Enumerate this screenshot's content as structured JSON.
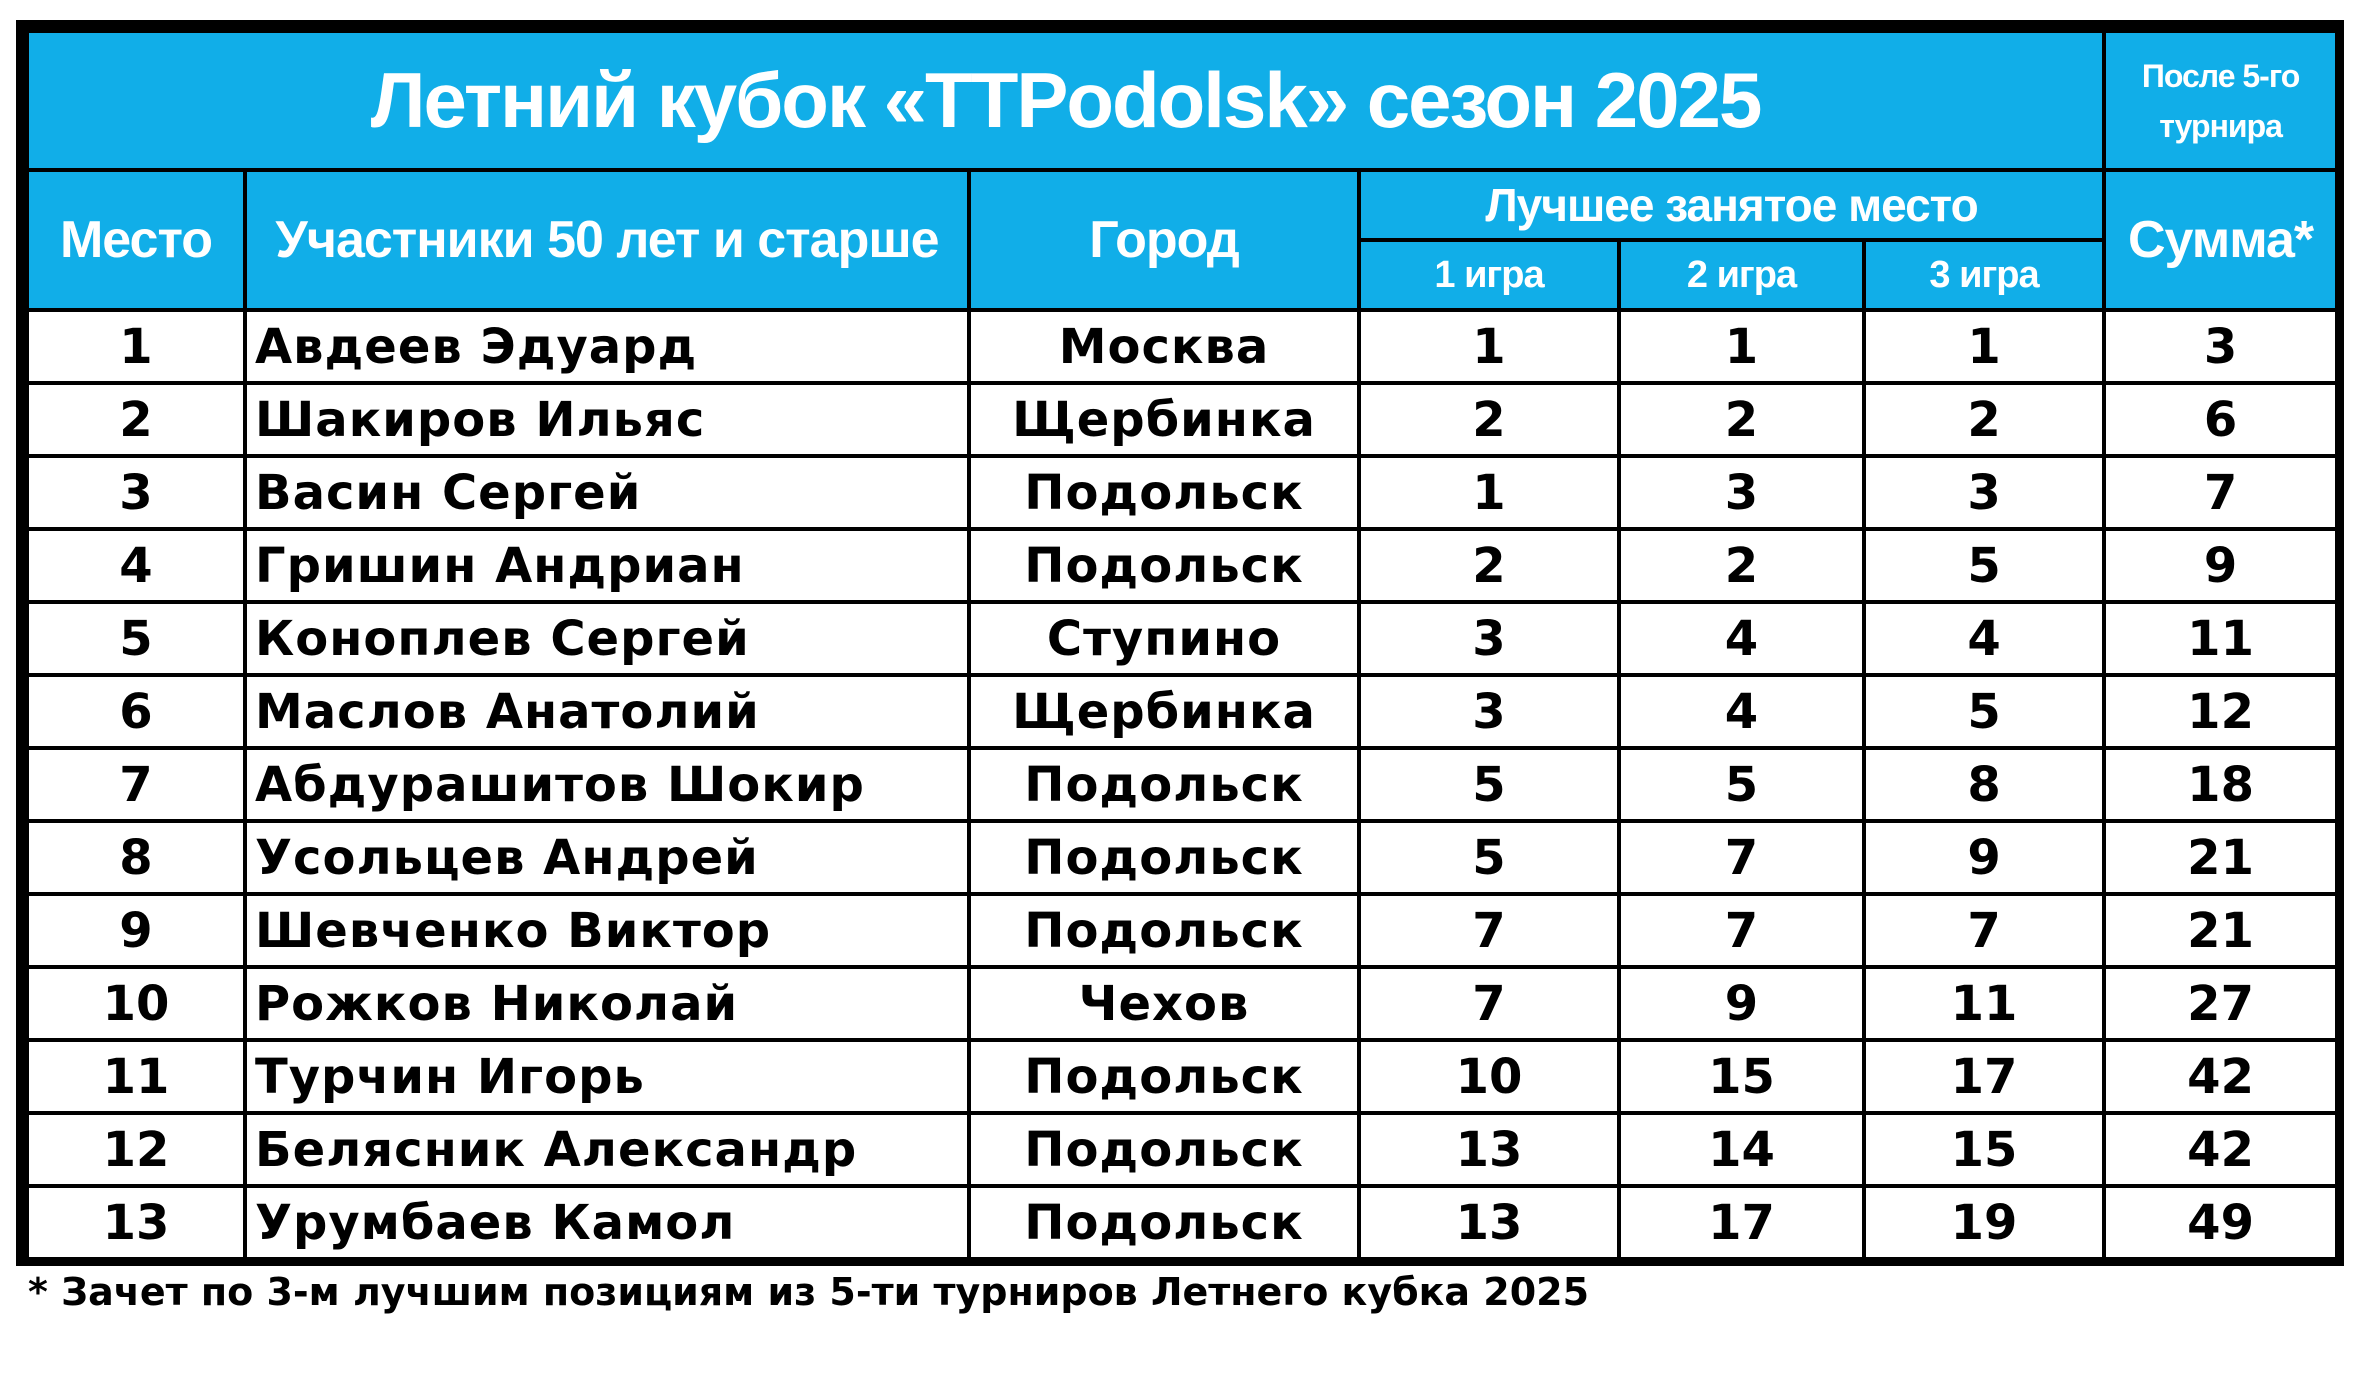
{
  "title": "Летний кубок «TTPodolsk» сезон 2025",
  "after_note": "После 5-го турнира",
  "headers": {
    "place": "Место",
    "participants": "Участники 50 лет и старше",
    "city": "Город",
    "best_place": "Лучшее занятое место",
    "game1": "1 игра",
    "game2": "2 игра",
    "game3": "3 игра",
    "sum": "Сумма*"
  },
  "rows": [
    {
      "place": "1",
      "name": "Авдеев Эдуард",
      "city": "Москва",
      "g1": "1",
      "g2": "1",
      "g3": "1",
      "sum": "3"
    },
    {
      "place": "2",
      "name": "Шакиров Ильяс",
      "city": "Щербинка",
      "g1": "2",
      "g2": "2",
      "g3": "2",
      "sum": "6"
    },
    {
      "place": "3",
      "name": "Васин Сергей",
      "city": "Подольск",
      "g1": "1",
      "g2": "3",
      "g3": "3",
      "sum": "7"
    },
    {
      "place": "4",
      "name": "Гришин Андриан",
      "city": "Подольск",
      "g1": "2",
      "g2": "2",
      "g3": "5",
      "sum": "9"
    },
    {
      "place": "5",
      "name": "Коноплев Сергей",
      "city": "Ступино",
      "g1": "3",
      "g2": "4",
      "g3": "4",
      "sum": "11"
    },
    {
      "place": "6",
      "name": "Маслов Анатолий",
      "city": "Щербинка",
      "g1": "3",
      "g2": "4",
      "g3": "5",
      "sum": "12"
    },
    {
      "place": "7",
      "name": "Абдурашитов Шокир",
      "city": "Подольск",
      "g1": "5",
      "g2": "5",
      "g3": "8",
      "sum": "18"
    },
    {
      "place": "8",
      "name": "Усольцев Андрей",
      "city": "Подольск",
      "g1": "5",
      "g2": "7",
      "g3": "9",
      "sum": "21"
    },
    {
      "place": "9",
      "name": "Шевченко Виктор",
      "city": "Подольск",
      "g1": "7",
      "g2": "7",
      "g3": "7",
      "sum": "21"
    },
    {
      "place": "10",
      "name": "Рожков Николай",
      "city": "Чехов",
      "g1": "7",
      "g2": "9",
      "g3": "11",
      "sum": "27"
    },
    {
      "place": "11",
      "name": "Турчин Игорь",
      "city": "Подольск",
      "g1": "10",
      "g2": "15",
      "g3": "17",
      "sum": "42"
    },
    {
      "place": "12",
      "name": "Белясник Александр",
      "city": "Подольск",
      "g1": "13",
      "g2": "14",
      "g3": "15",
      "sum": "42"
    },
    {
      "place": "13",
      "name": "Урумбаев Камол",
      "city": "Подольск",
      "g1": "13",
      "g2": "17",
      "g3": "19",
      "sum": "49"
    }
  ],
  "footnote": "* Зачет по 3-м лучшим позициям из 5-ти турниров Летнего кубка 2025",
  "colors": {
    "header_bg": "#11aee8",
    "header_text": "#ffffff",
    "border": "#000000"
  }
}
